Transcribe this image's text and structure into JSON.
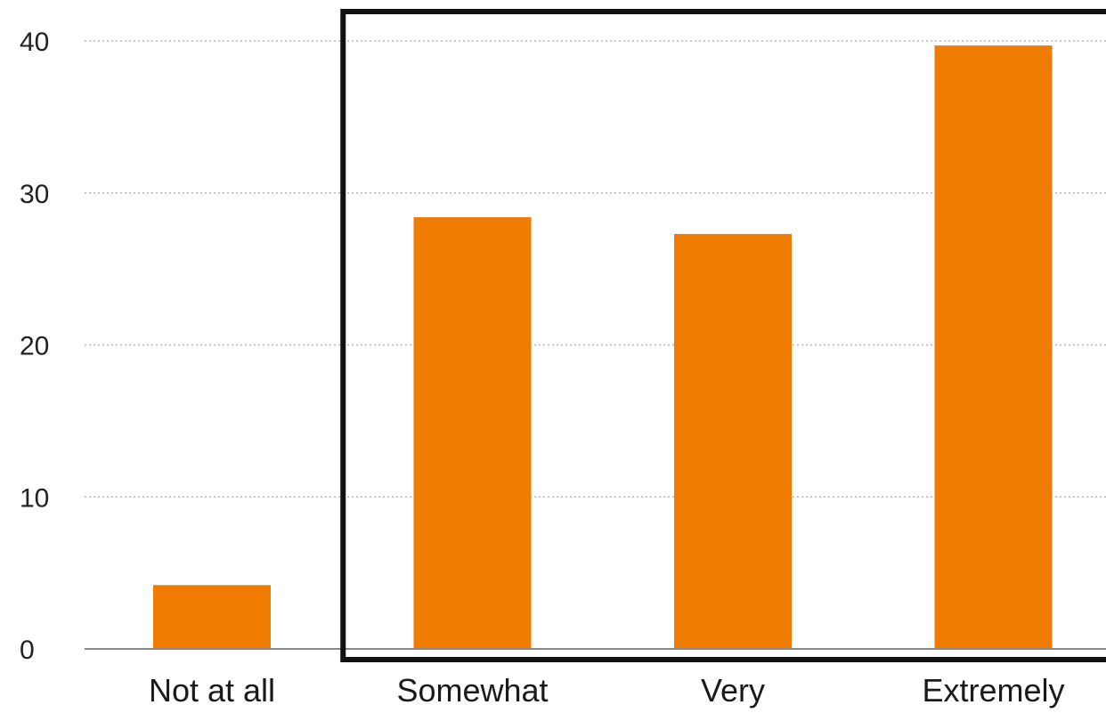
{
  "chart_data": {
    "type": "bar",
    "categories": [
      "Not at all",
      "Somewhat",
      "Very",
      "Extremely"
    ],
    "values": [
      4.2,
      28.4,
      27.3,
      39.7
    ],
    "ylim": [
      0,
      40
    ],
    "yticks": [
      "0",
      "10",
      "20",
      "30",
      "40"
    ],
    "xlabel": "",
    "ylabel": "",
    "grid": true,
    "legend": "none",
    "bar_color": "#ef7b00",
    "highlight_box": "Somewhat, Very, Extremely"
  }
}
